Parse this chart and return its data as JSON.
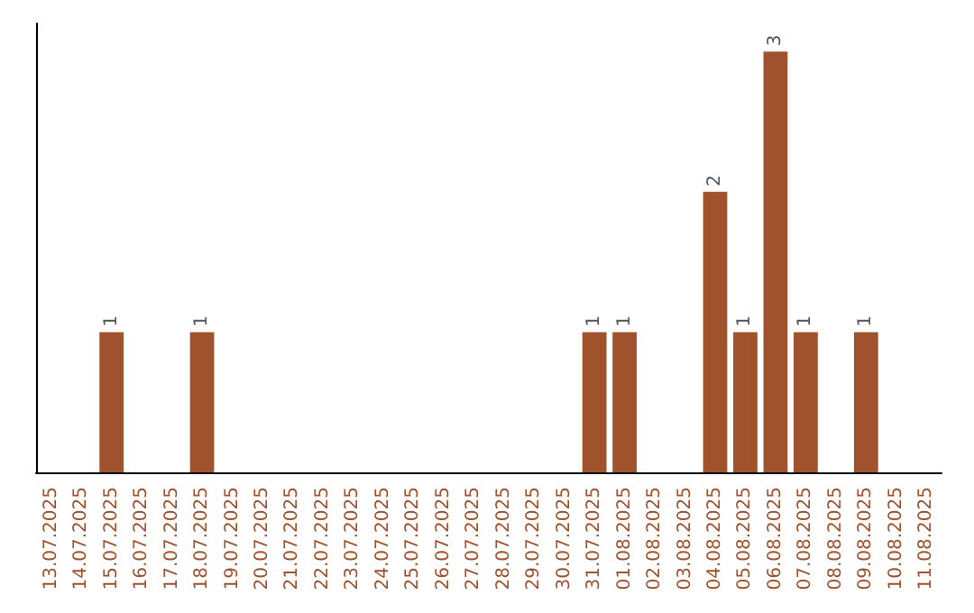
{
  "chart_data": {
    "type": "bar",
    "categories": [
      "13.07.2025",
      "14.07.2025",
      "15.07.2025",
      "16.07.2025",
      "17.07.2025",
      "18.07.2025",
      "19.07.2025",
      "20.07.2025",
      "21.07.2025",
      "22.07.2025",
      "23.07.2025",
      "24.07.2025",
      "25.07.2025",
      "26.07.2025",
      "27.07.2025",
      "28.07.2025",
      "29.07.2025",
      "30.07.2025",
      "31.07.2025",
      "01.08.2025",
      "02.08.2025",
      "03.08.2025",
      "04.08.2025",
      "05.08.2025",
      "06.08.2025",
      "07.08.2025",
      "08.08.2025",
      "09.08.2025",
      "10.08.2025",
      "11.08.2025"
    ],
    "values": [
      0,
      0,
      1,
      0,
      0,
      1,
      0,
      0,
      0,
      0,
      0,
      0,
      0,
      0,
      0,
      0,
      0,
      0,
      1,
      1,
      0,
      0,
      2,
      1,
      3,
      1,
      0,
      1,
      0,
      0
    ],
    "value_labels": [
      null,
      null,
      "1",
      null,
      null,
      "1",
      null,
      null,
      null,
      null,
      null,
      null,
      null,
      null,
      null,
      null,
      null,
      null,
      "1",
      "1",
      null,
      null,
      "2",
      "1",
      "3",
      "1",
      null,
      "1",
      null,
      null
    ],
    "color": "#a0522d",
    "ylim": [
      0,
      3.2
    ],
    "tick_labels": "x",
    "grid": false
  }
}
